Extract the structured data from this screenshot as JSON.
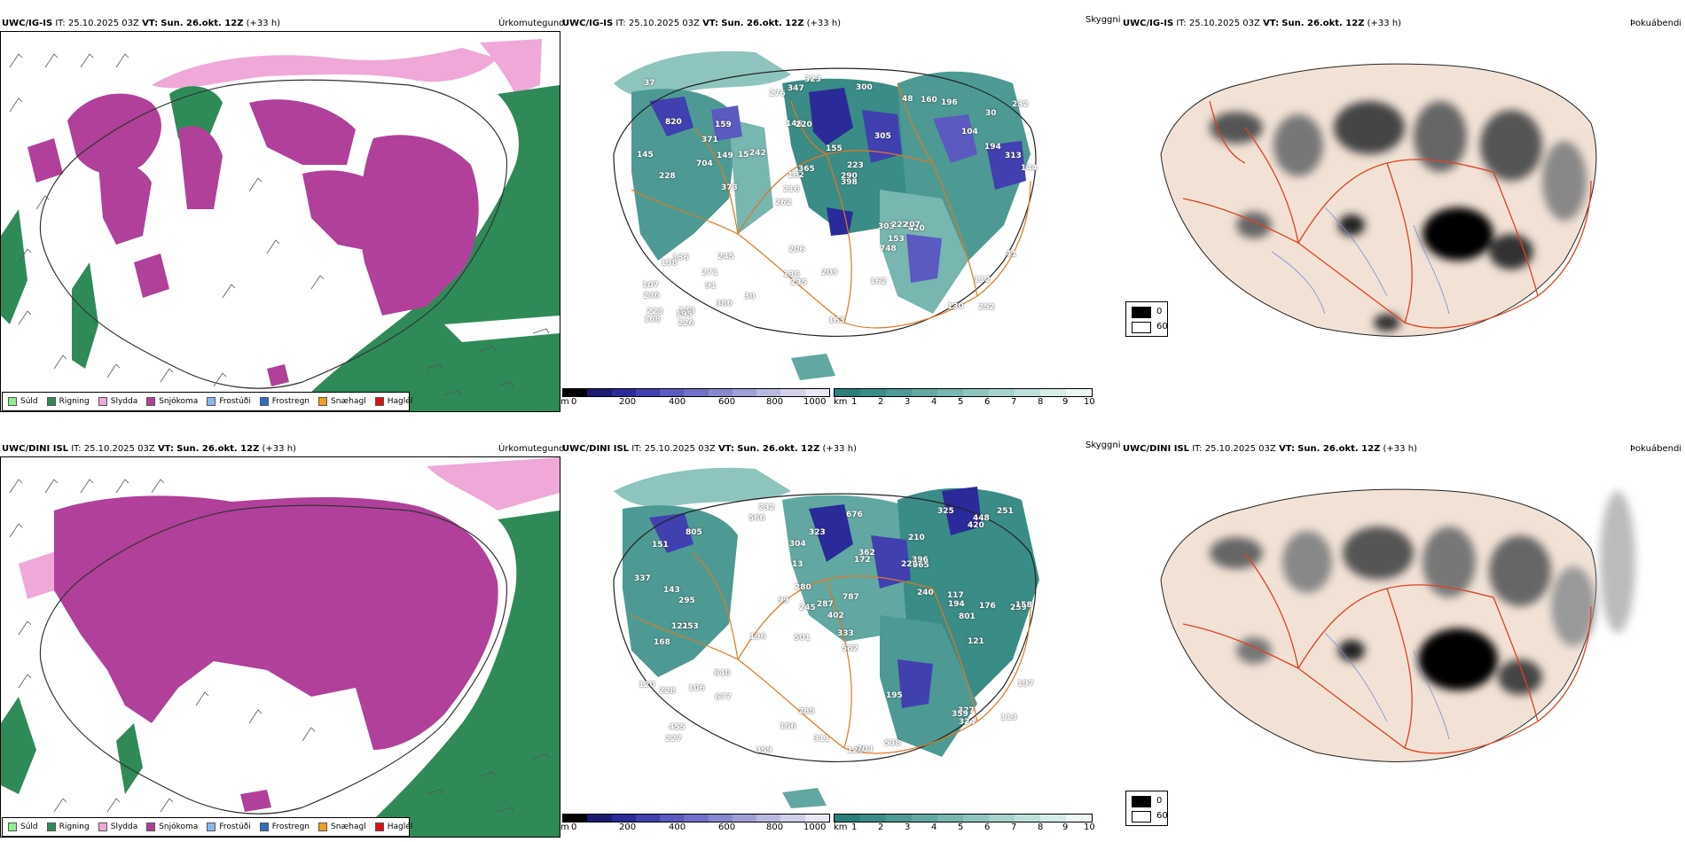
{
  "rows": [
    {
      "model": "UWC/IG-IS",
      "it_label": "IT:",
      "it_value": "25.10.2025 03Z",
      "vt_label": "VT:",
      "vt_value": "Sun. 26.okt. 12Z",
      "lead": "(+33 h)"
    },
    {
      "model": "UWC/DINI ISL",
      "it_label": "IT:",
      "it_value": "25.10.2025 03Z",
      "vt_label": "VT:",
      "vt_value": "Sun. 26.okt. 12Z",
      "lead": "(+33 h)"
    }
  ],
  "panel_titles": {
    "precip": "Úrkomutegund",
    "cloud": "Skyggni",
    "fog": "Þokuábendi"
  },
  "precip_legend": [
    {
      "label": "Súld",
      "color": "#90ee90"
    },
    {
      "label": "Rigning",
      "color": "#2e8b57"
    },
    {
      "label": "Slydda",
      "color": "#f0a8d8"
    },
    {
      "label": "Snjókoma",
      "color": "#b0409a"
    },
    {
      "label": "Frostúði",
      "color": "#87b8ee"
    },
    {
      "label": "Frostregn",
      "color": "#2f6fc0"
    },
    {
      "label": "Snæhagl",
      "color": "#f0a020"
    },
    {
      "label": "Haglél",
      "color": "#e01010"
    }
  ],
  "height_bar": {
    "unit": "m",
    "ticks": [
      "0",
      "200",
      "400",
      "600",
      "800",
      "1000"
    ],
    "colors": [
      "#000000",
      "#1a1a70",
      "#2a2a9a",
      "#4040b0",
      "#5a5ac0",
      "#7070c8",
      "#8888d0",
      "#a0a0d8",
      "#b8b8e0",
      "#d0d0ea",
      "#e8e8f4"
    ]
  },
  "vis_bar": {
    "unit": "km",
    "ticks": [
      "1",
      "2",
      "3",
      "4",
      "5",
      "6",
      "7",
      "8",
      "9",
      "10"
    ],
    "colors": [
      "#2a7f7a",
      "#3a8c86",
      "#4d9a94",
      "#62a8a2",
      "#78b6b0",
      "#8ec4be",
      "#a6d2cc",
      "#bddfda",
      "#d6ece8",
      "#eef7f5"
    ]
  },
  "fog_legend": {
    "items": [
      {
        "label": "0",
        "color": "#000000"
      },
      {
        "label": "60",
        "color": "#ffffff"
      }
    ]
  },
  "cloud_labels_top": [
    "252",
    "228",
    "30",
    "262",
    "305",
    "173",
    "146",
    "155",
    "136",
    "242",
    "236",
    "91",
    "220",
    "223",
    "420",
    "820",
    "347",
    "144",
    "303",
    "194",
    "216",
    "136",
    "182",
    "159",
    "48",
    "245",
    "130",
    "112",
    "207",
    "163",
    "15",
    "704",
    "748",
    "386",
    "313",
    "290",
    "223",
    "235",
    "398",
    "138",
    "104",
    "232",
    "153",
    "162",
    "271",
    "226",
    "168",
    "203",
    "196",
    "323",
    "373",
    "145",
    "371",
    "160",
    "195",
    "300",
    "276",
    "365",
    "41",
    "206",
    "30",
    "222",
    "149",
    "107",
    "37"
  ],
  "cloud_labels_bottom": [
    "232",
    "210",
    "259",
    "501",
    "582",
    "253",
    "151",
    "222",
    "168",
    "172",
    "402",
    "227",
    "566",
    "196",
    "129",
    "704",
    "285",
    "325",
    "240",
    "840",
    "295",
    "121",
    "158",
    "176",
    "120",
    "143",
    "245",
    "194",
    "327",
    "228",
    "359",
    "362",
    "106",
    "99",
    "195",
    "197",
    "117",
    "156",
    "251",
    "323",
    "455",
    "359",
    "538",
    "805",
    "311",
    "965",
    "324",
    "396",
    "337",
    "333",
    "304",
    "801",
    "787",
    "420",
    "676",
    "677",
    "280",
    "287",
    "448",
    "13",
    "113",
    "121"
  ]
}
